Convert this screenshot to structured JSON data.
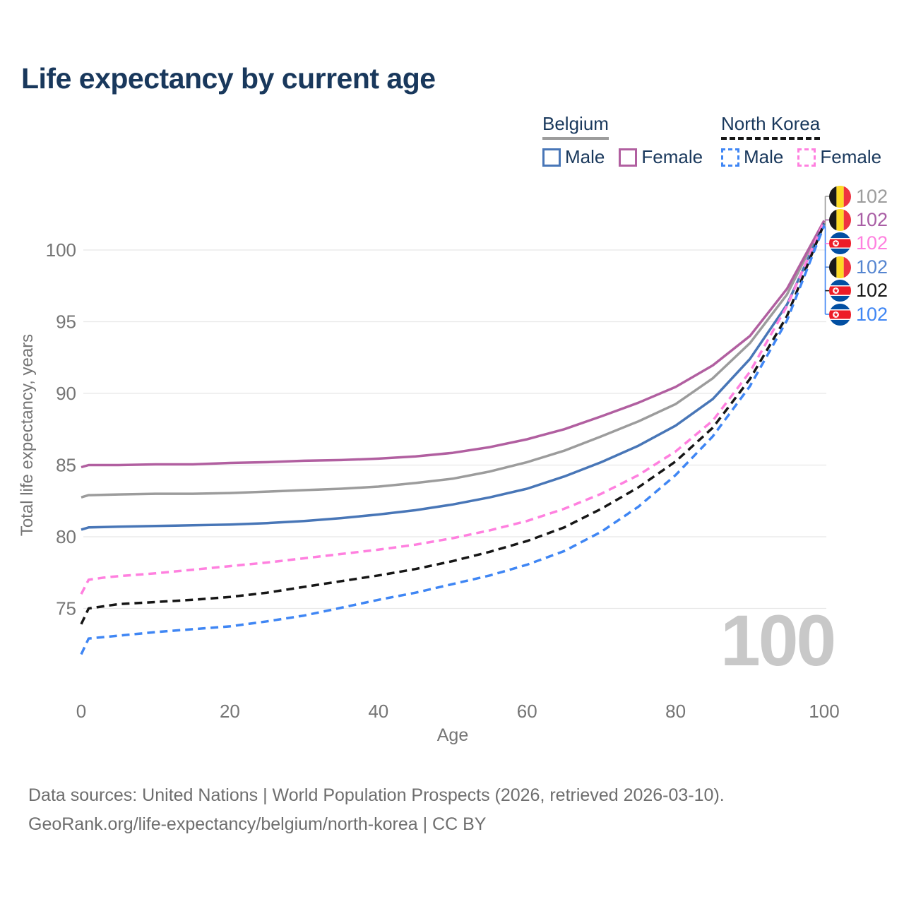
{
  "title": "Life expectancy by current age",
  "watermark": "100",
  "theme": {
    "title_color": "#19385c",
    "axis_text_color": "#757575",
    "grid_color": "#e8e8e8",
    "footer_color": "#6e6e6e",
    "watermark_color": "#c8c8c8"
  },
  "legend": {
    "groups": [
      {
        "name": "Belgium",
        "underline": {
          "color": "#9c9c9c",
          "style": "solid"
        },
        "items": [
          {
            "label": "Male",
            "color": "#4876b7",
            "dashed": false
          },
          {
            "label": "Female",
            "color": "#b15fa0",
            "dashed": false
          }
        ]
      },
      {
        "name": "North Korea",
        "underline": {
          "color": "#161616",
          "style": "dashed"
        },
        "items": [
          {
            "label": "Male",
            "color": "#3f86f4",
            "dashed": true
          },
          {
            "label": "Female",
            "color": "#ff80df",
            "dashed": true
          }
        ]
      }
    ]
  },
  "end_labels": [
    {
      "country": "Belgium",
      "series": "Total",
      "value": "102",
      "color": "#9c9c9c"
    },
    {
      "country": "Belgium",
      "series": "Female",
      "value": "102",
      "color": "#a95ea5"
    },
    {
      "country": "North Korea",
      "series": "Female",
      "value": "102",
      "color": "#ff80df"
    },
    {
      "country": "Belgium",
      "series": "Male",
      "value": "102",
      "color": "#5585d0"
    },
    {
      "country": "North Korea",
      "series": "Total",
      "value": "102",
      "color": "#161616"
    },
    {
      "country": "North Korea",
      "series": "Male",
      "value": "102",
      "color": "#3f86f4"
    }
  ],
  "footer": {
    "line1": "Data sources: United Nations | World Population Prospects (2026, retrieved 2026-03-10).",
    "line2": "GeoRank.org/life-expectancy/belgium/north-korea | CC BY"
  },
  "chart_data": {
    "type": "line",
    "title": "Life expectancy by current age",
    "xlabel": "Age",
    "ylabel": "Total life expectancy, years",
    "xlim": [
      0,
      100
    ],
    "ylim": [
      71,
      103
    ],
    "xticks": [
      0,
      20,
      40,
      60,
      80,
      100
    ],
    "yticks": [
      75,
      80,
      85,
      90,
      95,
      100
    ],
    "grid": "horizontal",
    "legend_position": "top-right",
    "series": [
      {
        "name": "Belgium Total",
        "country": "Belgium",
        "sex": "total",
        "color": "#9c9c9c",
        "dashed": false,
        "end_label": "102",
        "points": [
          [
            0,
            82.75
          ],
          [
            1,
            82.9
          ],
          [
            5,
            82.95
          ],
          [
            10,
            83.0
          ],
          [
            15,
            83.0
          ],
          [
            20,
            83.05
          ],
          [
            25,
            83.15
          ],
          [
            30,
            83.25
          ],
          [
            35,
            83.35
          ],
          [
            40,
            83.5
          ],
          [
            45,
            83.75
          ],
          [
            50,
            84.05
          ],
          [
            55,
            84.55
          ],
          [
            60,
            85.2
          ],
          [
            65,
            86.0
          ],
          [
            70,
            87.0
          ],
          [
            75,
            88.05
          ],
          [
            80,
            89.25
          ],
          [
            85,
            91.05
          ],
          [
            90,
            93.5
          ],
          [
            95,
            96.9
          ],
          [
            100,
            102.05
          ]
        ]
      },
      {
        "name": "Belgium Female",
        "country": "Belgium",
        "sex": "female",
        "color": "#b15fa0",
        "dashed": false,
        "end_label": "102",
        "points": [
          [
            0,
            84.85
          ],
          [
            1,
            85.0
          ],
          [
            3,
            85.0
          ],
          [
            5,
            85.0
          ],
          [
            10,
            85.05
          ],
          [
            15,
            85.05
          ],
          [
            20,
            85.15
          ],
          [
            25,
            85.2
          ],
          [
            30,
            85.3
          ],
          [
            35,
            85.35
          ],
          [
            40,
            85.45
          ],
          [
            45,
            85.6
          ],
          [
            50,
            85.85
          ],
          [
            55,
            86.25
          ],
          [
            60,
            86.8
          ],
          [
            65,
            87.5
          ],
          [
            70,
            88.4
          ],
          [
            75,
            89.35
          ],
          [
            80,
            90.45
          ],
          [
            85,
            91.95
          ],
          [
            90,
            94.0
          ],
          [
            95,
            97.3
          ],
          [
            100,
            102.05
          ]
        ]
      },
      {
        "name": "Belgium Male",
        "country": "Belgium",
        "sex": "male",
        "color": "#4876b7",
        "dashed": false,
        "end_label": "102",
        "points": [
          [
            0,
            80.5
          ],
          [
            1,
            80.65
          ],
          [
            5,
            80.7
          ],
          [
            10,
            80.75
          ],
          [
            15,
            80.8
          ],
          [
            20,
            80.85
          ],
          [
            25,
            80.95
          ],
          [
            30,
            81.1
          ],
          [
            35,
            81.3
          ],
          [
            40,
            81.55
          ],
          [
            45,
            81.85
          ],
          [
            50,
            82.25
          ],
          [
            55,
            82.75
          ],
          [
            60,
            83.35
          ],
          [
            65,
            84.2
          ],
          [
            70,
            85.2
          ],
          [
            75,
            86.35
          ],
          [
            80,
            87.75
          ],
          [
            85,
            89.6
          ],
          [
            90,
            92.4
          ],
          [
            95,
            96.2
          ],
          [
            100,
            101.85
          ]
        ]
      },
      {
        "name": "North Korea Female",
        "country": "North Korea",
        "sex": "female",
        "color": "#ff80df",
        "dashed": true,
        "end_label": "102",
        "points": [
          [
            0,
            76.0
          ],
          [
            1,
            77.0
          ],
          [
            3,
            77.15
          ],
          [
            5,
            77.25
          ],
          [
            10,
            77.45
          ],
          [
            15,
            77.7
          ],
          [
            20,
            77.95
          ],
          [
            25,
            78.2
          ],
          [
            30,
            78.5
          ],
          [
            35,
            78.8
          ],
          [
            40,
            79.1
          ],
          [
            45,
            79.45
          ],
          [
            50,
            79.9
          ],
          [
            55,
            80.45
          ],
          [
            60,
            81.1
          ],
          [
            65,
            81.95
          ],
          [
            70,
            83.0
          ],
          [
            75,
            84.3
          ],
          [
            80,
            85.95
          ],
          [
            85,
            88.1
          ],
          [
            90,
            91.5
          ],
          [
            95,
            96.1
          ],
          [
            100,
            102.0
          ]
        ]
      },
      {
        "name": "North Korea Total",
        "country": "North Korea",
        "sex": "total",
        "color": "#161616",
        "dashed": true,
        "end_label": "102",
        "points": [
          [
            0,
            73.9
          ],
          [
            1,
            75.0
          ],
          [
            3,
            75.15
          ],
          [
            5,
            75.3
          ],
          [
            10,
            75.45
          ],
          [
            15,
            75.6
          ],
          [
            20,
            75.8
          ],
          [
            25,
            76.1
          ],
          [
            30,
            76.5
          ],
          [
            35,
            76.9
          ],
          [
            40,
            77.3
          ],
          [
            45,
            77.75
          ],
          [
            50,
            78.3
          ],
          [
            55,
            78.95
          ],
          [
            60,
            79.7
          ],
          [
            65,
            80.65
          ],
          [
            70,
            81.95
          ],
          [
            75,
            83.45
          ],
          [
            80,
            85.25
          ],
          [
            85,
            87.6
          ],
          [
            90,
            91.0
          ],
          [
            95,
            95.4
          ],
          [
            100,
            101.85
          ]
        ]
      },
      {
        "name": "North Korea Male",
        "country": "North Korea",
        "sex": "male",
        "color": "#3f86f4",
        "dashed": true,
        "end_label": "102",
        "points": [
          [
            0,
            71.8
          ],
          [
            1,
            72.9
          ],
          [
            3,
            73.0
          ],
          [
            5,
            73.1
          ],
          [
            10,
            73.35
          ],
          [
            15,
            73.55
          ],
          [
            20,
            73.75
          ],
          [
            25,
            74.1
          ],
          [
            30,
            74.5
          ],
          [
            35,
            75.05
          ],
          [
            40,
            75.6
          ],
          [
            45,
            76.1
          ],
          [
            50,
            76.7
          ],
          [
            55,
            77.3
          ],
          [
            60,
            78.05
          ],
          [
            65,
            79.0
          ],
          [
            70,
            80.35
          ],
          [
            75,
            82.1
          ],
          [
            80,
            84.3
          ],
          [
            85,
            87.0
          ],
          [
            90,
            90.5
          ],
          [
            95,
            95.1
          ],
          [
            100,
            101.7
          ]
        ]
      }
    ]
  }
}
